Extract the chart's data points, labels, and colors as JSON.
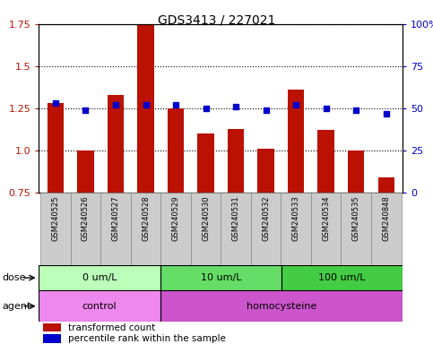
{
  "title": "GDS3413 / 227021",
  "samples": [
    "GSM240525",
    "GSM240526",
    "GSM240527",
    "GSM240528",
    "GSM240529",
    "GSM240530",
    "GSM240531",
    "GSM240532",
    "GSM240533",
    "GSM240534",
    "GSM240535",
    "GSM240848"
  ],
  "transformed_count": [
    1.28,
    1.0,
    1.33,
    1.75,
    1.25,
    1.1,
    1.13,
    1.01,
    1.36,
    1.12,
    1.0,
    0.84
  ],
  "percentile_rank": [
    53,
    49,
    52,
    52,
    52,
    50,
    51,
    49,
    52,
    50,
    49,
    47
  ],
  "bar_color": "#bb1100",
  "dot_color": "#0000cc",
  "ylim_left": [
    0.75,
    1.75
  ],
  "ylim_right": [
    0,
    100
  ],
  "yticks_left": [
    0.75,
    1.0,
    1.25,
    1.5,
    1.75
  ],
  "yticks_right": [
    0,
    25,
    50,
    75,
    100
  ],
  "ytick_labels_right": [
    "0",
    "25",
    "50",
    "75",
    "100%"
  ],
  "dose_groups": [
    {
      "label": "0 um/L",
      "start": 0,
      "end": 4,
      "color": "#bbffbb"
    },
    {
      "label": "10 um/L",
      "start": 4,
      "end": 8,
      "color": "#66dd66"
    },
    {
      "label": "100 um/L",
      "start": 8,
      "end": 12,
      "color": "#44cc44"
    }
  ],
  "agent_groups": [
    {
      "label": "control",
      "start": 0,
      "end": 4,
      "color": "#ee88ee"
    },
    {
      "label": "homocysteine",
      "start": 4,
      "end": 12,
      "color": "#cc55cc"
    }
  ],
  "legend_bar_label": "transformed count",
  "legend_dot_label": "percentile rank within the sample",
  "dose_label": "dose",
  "agent_label": "agent",
  "bar_bottom": 0.75,
  "cell_bg": "#cccccc",
  "cell_border": "#888888"
}
